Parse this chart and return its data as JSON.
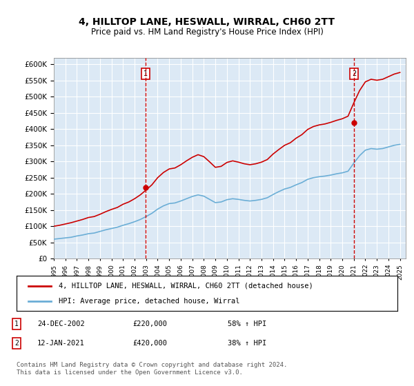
{
  "title": "4, HILLTOP LANE, HESWALL, WIRRAL, CH60 2TT",
  "subtitle": "Price paid vs. HM Land Registry's House Price Index (HPI)",
  "bg_color": "#dce9f5",
  "plot_bg_color": "#dce9f5",
  "hpi_color": "#6baed6",
  "price_color": "#cc0000",
  "ylim": [
    0,
    620000
  ],
  "yticks": [
    0,
    50000,
    100000,
    150000,
    200000,
    250000,
    300000,
    350000,
    400000,
    450000,
    500000,
    550000,
    600000
  ],
  "year_start": 1995,
  "year_end": 2025,
  "sale1_year": 2002.98,
  "sale1_price": 220000,
  "sale2_year": 2021.04,
  "sale2_price": 420000,
  "legend_label_price": "4, HILLTOP LANE, HESWALL, WIRRAL, CH60 2TT (detached house)",
  "legend_label_hpi": "HPI: Average price, detached house, Wirral",
  "table_entries": [
    {
      "num": 1,
      "date": "24-DEC-2002",
      "price": "£220,000",
      "change": "58% ↑ HPI"
    },
    {
      "num": 2,
      "date": "12-JAN-2021",
      "price": "£420,000",
      "change": "38% ↑ HPI"
    }
  ],
  "footnote": "Contains HM Land Registry data © Crown copyright and database right 2024.\nThis data is licensed under the Open Government Licence v3.0.",
  "hpi_data": {
    "years": [
      1995,
      1995.5,
      1996,
      1996.5,
      1997,
      1997.5,
      1998,
      1998.5,
      1999,
      1999.5,
      2000,
      2000.5,
      2001,
      2001.5,
      2002,
      2002.5,
      2003,
      2003.5,
      2004,
      2004.5,
      2005,
      2005.5,
      2006,
      2006.5,
      2007,
      2007.5,
      2008,
      2008.5,
      2009,
      2009.5,
      2010,
      2010.5,
      2011,
      2011.5,
      2012,
      2012.5,
      2013,
      2013.5,
      2014,
      2014.5,
      2015,
      2015.5,
      2016,
      2016.5,
      2017,
      2017.5,
      2018,
      2018.5,
      2019,
      2019.5,
      2020,
      2020.5,
      2021,
      2021.5,
      2022,
      2022.5,
      2023,
      2023.5,
      2024,
      2024.5,
      2025
    ],
    "values": [
      60000,
      62000,
      64000,
      66000,
      70000,
      73000,
      77000,
      79000,
      84000,
      89000,
      93000,
      97000,
      103000,
      108000,
      114000,
      121000,
      130000,
      140000,
      153000,
      163000,
      170000,
      172000,
      178000,
      185000,
      192000,
      197000,
      193000,
      183000,
      173000,
      175000,
      182000,
      185000,
      183000,
      180000,
      178000,
      180000,
      183000,
      188000,
      198000,
      207000,
      215000,
      220000,
      228000,
      235000,
      245000,
      250000,
      253000,
      255000,
      258000,
      262000,
      265000,
      270000,
      295000,
      318000,
      335000,
      340000,
      338000,
      340000,
      345000,
      350000,
      353000
    ]
  },
  "price_data": {
    "years": [
      1995,
      1995.5,
      1996,
      1996.5,
      1997,
      1997.5,
      1998,
      1998.5,
      1999,
      1999.5,
      2000,
      2000.5,
      2001,
      2001.5,
      2002,
      2002.5,
      2003,
      2003.5,
      2004,
      2004.5,
      2005,
      2005.5,
      2006,
      2006.5,
      2007,
      2007.5,
      2008,
      2008.5,
      2009,
      2009.5,
      2010,
      2010.5,
      2011,
      2011.5,
      2012,
      2012.5,
      2013,
      2013.5,
      2014,
      2014.5,
      2015,
      2015.5,
      2016,
      2016.5,
      2017,
      2017.5,
      2018,
      2018.5,
      2019,
      2019.5,
      2020,
      2020.5,
      2021,
      2021.5,
      2022,
      2022.5,
      2023,
      2023.5,
      2024,
      2024.5,
      2025
    ],
    "values": [
      100000,
      103000,
      107000,
      111000,
      116000,
      121000,
      127000,
      130000,
      137000,
      145000,
      152000,
      158000,
      168000,
      175000,
      185000,
      197000,
      212000,
      228000,
      250000,
      266000,
      277000,
      280000,
      290000,
      302000,
      313000,
      321000,
      315000,
      299000,
      282000,
      285000,
      297000,
      302000,
      298000,
      293000,
      290000,
      293000,
      298000,
      306000,
      323000,
      337000,
      350000,
      358000,
      372000,
      383000,
      399000,
      408000,
      413000,
      416000,
      421000,
      427000,
      432000,
      440000,
      481000,
      519000,
      546000,
      554000,
      551000,
      554000,
      562000,
      570000,
      575000
    ]
  }
}
